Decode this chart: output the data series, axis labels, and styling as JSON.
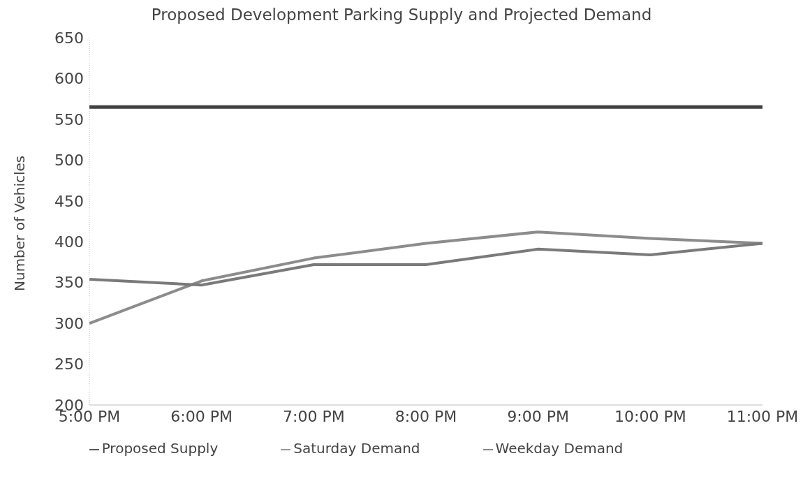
{
  "chart_data": {
    "type": "line",
    "title": "Proposed Development Parking Supply and Projected Demand",
    "ylabel": "Number of Vehicles",
    "categories": [
      "5:00 PM",
      "6:00 PM",
      "7:00 PM",
      "8:00 PM",
      "9:00 PM",
      "10:00 PM",
      "11:00 PM"
    ],
    "series": [
      {
        "name": "Saturday Demand",
        "color": "#8c8c8c",
        "values": [
          300,
          352,
          380,
          398,
          412,
          404,
          398
        ]
      },
      {
        "name": "Weekday Demand",
        "color": "#7a7a7a",
        "values": [
          354,
          347,
          372,
          372,
          391,
          384,
          398
        ]
      },
      {
        "name": "Proposed Supply",
        "color": "#404040",
        "values": [
          565,
          565,
          565,
          565,
          565,
          565,
          565
        ]
      }
    ],
    "ylim": [
      200,
      650
    ],
    "yticks": [
      200,
      250,
      300,
      350,
      400,
      450,
      500,
      550,
      600,
      650
    ],
    "grid": false,
    "legend": "bottom",
    "marker": "none",
    "line_style": "solid"
  }
}
